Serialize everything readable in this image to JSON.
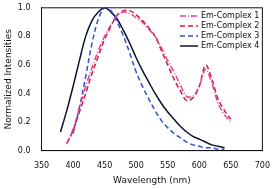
{
  "chart_data": {
    "type": "line",
    "x_label": "Wavelength (nm)",
    "y_label": "Normalized Intensities",
    "x": [
      380,
      390,
      400,
      410,
      420,
      430,
      440,
      450,
      460,
      470,
      480,
      490,
      500,
      510,
      520,
      530,
      540,
      550,
      560,
      570,
      580,
      590,
      600,
      610,
      620,
      630,
      640,
      650
    ],
    "series": [
      {
        "name": "Em-Complex 1",
        "color": "#e0409a",
        "line_style": "dashdot",
        "values": [
          null,
          0.05,
          0.15,
          0.3,
          0.45,
          0.58,
          0.7,
          0.8,
          0.88,
          0.95,
          0.97,
          0.96,
          0.93,
          0.9,
          0.85,
          0.8,
          0.72,
          0.63,
          0.55,
          0.46,
          0.38,
          0.38,
          0.45,
          0.57,
          0.47,
          0.33,
          0.25,
          0.2
        ]
      },
      {
        "name": "Em-Complex 2",
        "color": "#d01c3c",
        "line_style": "dashed",
        "values": [
          null,
          0.05,
          0.14,
          0.27,
          0.4,
          0.54,
          0.66,
          0.78,
          0.87,
          0.95,
          0.98,
          0.98,
          0.95,
          0.91,
          0.86,
          0.8,
          0.7,
          0.6,
          0.5,
          0.42,
          0.35,
          0.37,
          0.45,
          0.6,
          0.5,
          0.36,
          0.28,
          0.22
        ]
      },
      {
        "name": "Em-Complex 3",
        "color": "#3050d0",
        "line_style": "dashed",
        "values": [
          null,
          null,
          0.12,
          0.3,
          0.52,
          0.75,
          0.92,
          1.0,
          0.98,
          0.9,
          0.8,
          0.68,
          0.55,
          0.45,
          0.36,
          0.28,
          0.21,
          0.16,
          0.12,
          0.09,
          0.06,
          0.04,
          0.03,
          0.02,
          0.02,
          0.01,
          0.01,
          null
        ]
      },
      {
        "name": "Em-Complex 4",
        "color": "#101030",
        "line_style": "solid",
        "values": [
          0.13,
          0.28,
          0.45,
          0.63,
          0.8,
          0.91,
          0.97,
          1.0,
          0.97,
          0.92,
          0.84,
          0.75,
          0.65,
          0.56,
          0.48,
          0.4,
          0.33,
          0.27,
          0.22,
          0.17,
          0.13,
          0.1,
          0.08,
          0.06,
          0.04,
          0.03,
          0.02,
          null
        ]
      }
    ],
    "xlim": [
      350,
      700
    ],
    "xticks": [
      350,
      400,
      450,
      500,
      550,
      600,
      650,
      700
    ],
    "ylim": [
      0,
      1
    ],
    "yticks": [
      {
        "value": 0,
        "label": "0.0"
      },
      0.2,
      0.4,
      0.6,
      0.8,
      {
        "value": 1,
        "label": "1.0"
      }
    ],
    "grid": false,
    "legend": "top right"
  }
}
